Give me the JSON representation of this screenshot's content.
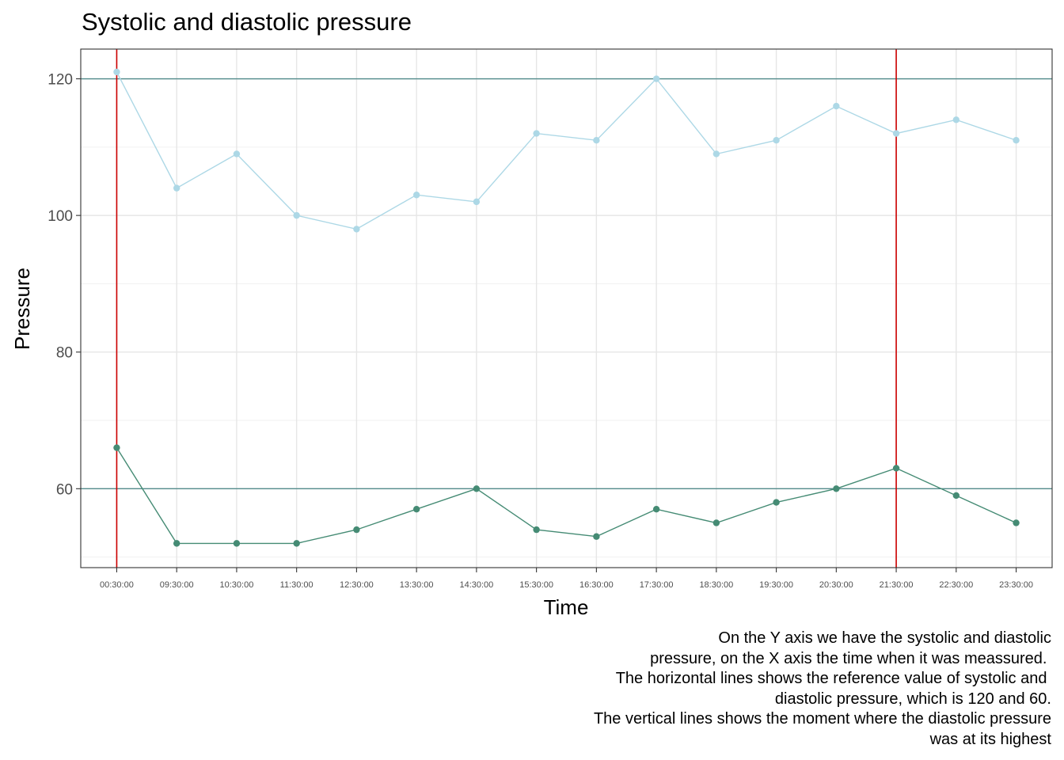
{
  "chart_data": {
    "type": "line",
    "title": "Systolic and diastolic pressure",
    "xlabel": "Time",
    "ylabel": "Pressure",
    "categories": [
      "00:30:00",
      "09:30:00",
      "10:30:00",
      "11:30:00",
      "12:30:00",
      "13:30:00",
      "14:30:00",
      "15:30:00",
      "16:30:00",
      "17:30:00",
      "18:30:00",
      "19:30:00",
      "20:30:00",
      "21:30:00",
      "22:30:00",
      "23:30:00"
    ],
    "series": [
      {
        "key": "systolic",
        "color": "#add8e6",
        "values": [
          121,
          104,
          109,
          100,
          98,
          103,
          102,
          112,
          111,
          120,
          109,
          111,
          116,
          112,
          114,
          111
        ]
      },
      {
        "key": "diastolic",
        "color": "#458b74",
        "values": [
          66,
          52,
          52,
          52,
          54,
          57,
          60,
          54,
          53,
          57,
          55,
          58,
          60,
          63,
          59,
          55
        ]
      }
    ],
    "ylim": [
      48.45,
      124.35
    ],
    "yticks": [
      60,
      80,
      100,
      120
    ],
    "grid": true,
    "reference_lines": {
      "horizontal": [
        {
          "value": 120,
          "color": "#528b8b"
        },
        {
          "value": 60,
          "color": "#528b8b"
        }
      ],
      "vertical": [
        {
          "category": "00:30:00",
          "color": "#cc0000"
        },
        {
          "category": "21:30:00",
          "color": "#cc0000"
        }
      ]
    }
  },
  "caption": [
    "On the Y axis we have the systolic and diastolic",
    "pressure, on the X axis the time when it was meassured. ",
    "The horizontal lines shows the reference value of systolic and ",
    "diastolic pressure, which is 120 and 60.",
    "The vertical lines shows the moment where the diastolic pressure",
    "was at its highest"
  ]
}
